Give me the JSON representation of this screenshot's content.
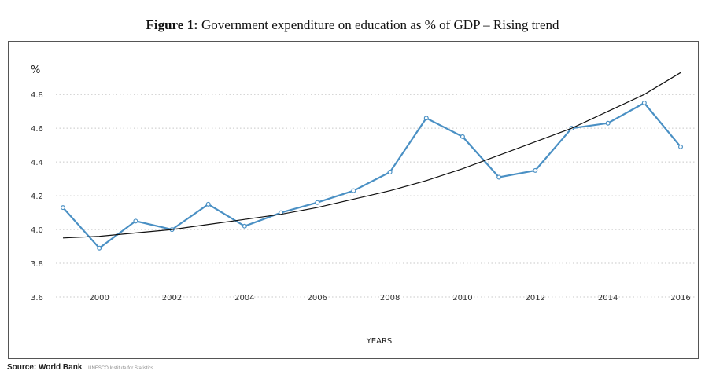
{
  "figure": {
    "label": "Figure 1:",
    "title": "Government expenditure on education as % of GDP – Rising trend"
  },
  "source": {
    "label": "Source: World Bank",
    "sub": "UNESCO Institute for Statistics"
  },
  "chart_data": {
    "type": "line",
    "ylabel": "%",
    "xlabel": "YEARS",
    "x": [
      1999,
      2000,
      2001,
      2002,
      2003,
      2004,
      2005,
      2006,
      2007,
      2008,
      2009,
      2010,
      2011,
      2012,
      2013,
      2014,
      2015,
      2016
    ],
    "x_ticks": [
      2000,
      2002,
      2004,
      2006,
      2008,
      2010,
      2012,
      2014,
      2016
    ],
    "y_ticks": [
      3.6,
      3.8,
      4.0,
      4.2,
      4.4,
      4.6,
      4.8
    ],
    "y_tick_labels": [
      "3.6",
      "3.8",
      "4.0",
      "4.2",
      "4.4",
      "4.6",
      "4.8"
    ],
    "ylim": [
      3.6,
      4.95
    ],
    "grid": true,
    "series": [
      {
        "values": [
          4.13,
          3.89,
          4.05,
          4.0,
          4.15,
          4.02,
          4.1,
          4.16,
          4.23,
          4.34,
          4.66,
          4.55,
          4.31,
          4.35,
          4.6,
          4.63,
          4.75,
          4.49
        ],
        "color": "#4a90c4"
      },
      {
        "type": "trend",
        "values": [
          3.95,
          3.96,
          3.98,
          4.0,
          4.03,
          4.06,
          4.09,
          4.13,
          4.18,
          4.23,
          4.29,
          4.36,
          4.44,
          4.52,
          4.6,
          4.7,
          4.8,
          4.93
        ],
        "color": "#111111"
      }
    ]
  }
}
